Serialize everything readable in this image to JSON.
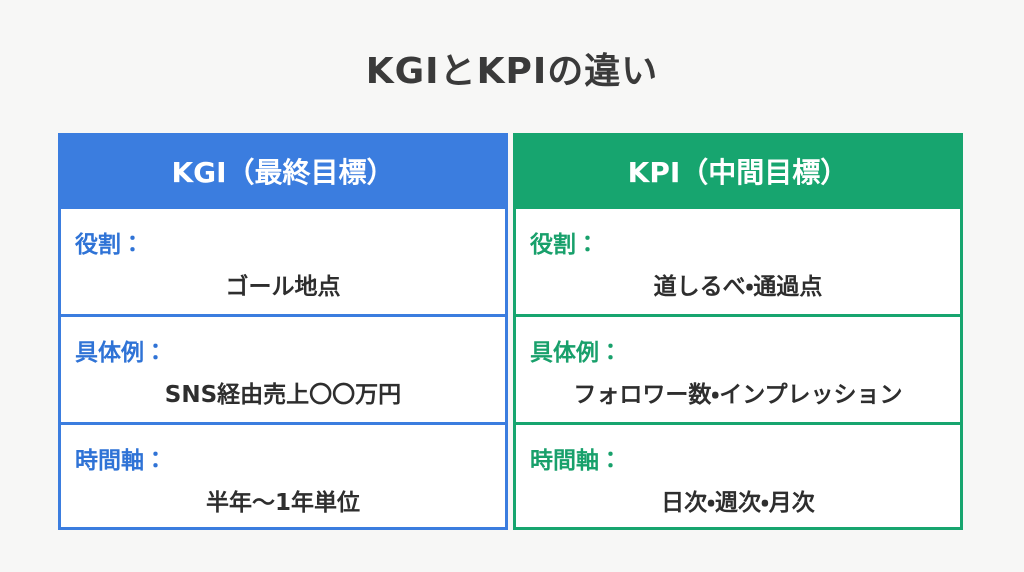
{
  "title": "KGIとKPIの違い",
  "columns": [
    {
      "header": "KGI（最終目標）",
      "rows": [
        {
          "label": "役割：",
          "value": "ゴール地点"
        },
        {
          "label": "具体例：",
          "value": "SNS経由売上〇〇万円"
        },
        {
          "label": "時間軸：",
          "value": "半年〜1年単位"
        }
      ]
    },
    {
      "header": "KPI（中間目標）",
      "rows": [
        {
          "label": "役割：",
          "value": "道しるべ・通過点"
        },
        {
          "label": "具体例：",
          "value": "フォロワー数・インプレッション"
        },
        {
          "label": "時間軸：",
          "value": "日次・週次・月次"
        }
      ]
    }
  ]
}
